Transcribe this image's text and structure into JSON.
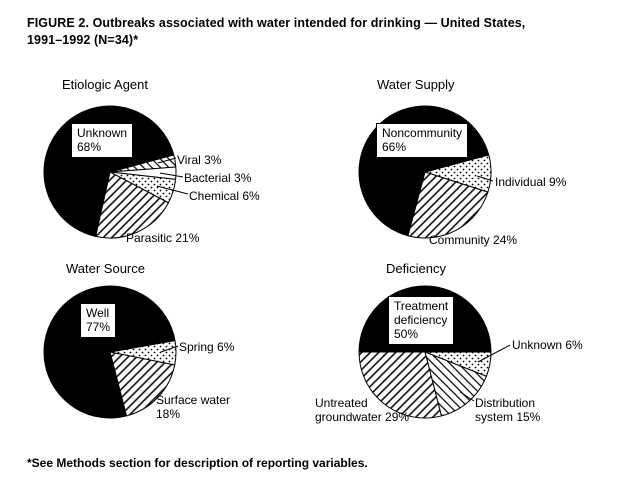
{
  "figure": {
    "title_line1": "FIGURE 2. Outbreaks associated with water intended for drinking — United States,",
    "title_line2": "1991–1992 (N=34)*",
    "footnote": "*See Methods section for description of reporting variables."
  },
  "chart_data": [
    {
      "type": "pie",
      "title": "Etiologic Agent",
      "start_angle_deg": -15,
      "direction": "clockwise",
      "slices": [
        {
          "label": "Viral",
          "pct": 3,
          "pattern": "diag2"
        },
        {
          "label": "Bacterial",
          "pct": 3,
          "pattern": "plain"
        },
        {
          "label": "Chemical",
          "pct": 6,
          "pattern": "dots"
        },
        {
          "label": "Parasitic",
          "pct": 21,
          "pattern": "hatch"
        },
        {
          "label": "Unknown",
          "pct": 68,
          "pattern": "black"
        }
      ],
      "box_label": "Unknown\n68%",
      "callouts": [
        {
          "text": "Viral 3%"
        },
        {
          "text": "Bacterial 3%"
        },
        {
          "text": "Chemical 6%"
        },
        {
          "text": "Parasitic 21%"
        }
      ]
    },
    {
      "type": "pie",
      "title": "Water Supply",
      "start_angle_deg": -15,
      "direction": "clockwise",
      "slices": [
        {
          "label": "Individual",
          "pct": 9,
          "pattern": "dots"
        },
        {
          "label": "Community",
          "pct": 24,
          "pattern": "hatch"
        },
        {
          "label": "Noncommunity",
          "pct": 66,
          "pattern": "black"
        }
      ],
      "box_label": "Noncommunity\n66%",
      "callouts": [
        {
          "text": "Individual 9%"
        },
        {
          "text": "Community 24%"
        }
      ]
    },
    {
      "type": "pie",
      "title": "Water Source",
      "start_angle_deg": -10,
      "direction": "clockwise",
      "slices": [
        {
          "label": "Spring",
          "pct": 6,
          "pattern": "dots"
        },
        {
          "label": "Surface water",
          "pct": 18,
          "pattern": "hatch"
        },
        {
          "label": "Well",
          "pct": 77,
          "pattern": "black"
        }
      ],
      "box_label": "Well\n77%",
      "callouts": [
        {
          "text": "Spring 6%"
        },
        {
          "text": "Surface water\n18%"
        }
      ]
    },
    {
      "type": "pie",
      "title": "Deficiency",
      "start_angle_deg": 0,
      "direction": "clockwise",
      "slices": [
        {
          "label": "Unknown",
          "pct": 6,
          "pattern": "dots"
        },
        {
          "label": "Distribution system",
          "pct": 15,
          "pattern": "diag2"
        },
        {
          "label": "Untreated groundwater",
          "pct": 29,
          "pattern": "hatch"
        },
        {
          "label": "Treatment deficiency",
          "pct": 50,
          "pattern": "black"
        }
      ],
      "box_label": "Treatment\ndeficiency\n50%",
      "callouts": [
        {
          "text": "Unknown 6%"
        },
        {
          "text": "Distribution\nsystem 15%"
        },
        {
          "text": "Untreated\ngroundwater 29%"
        }
      ]
    }
  ]
}
